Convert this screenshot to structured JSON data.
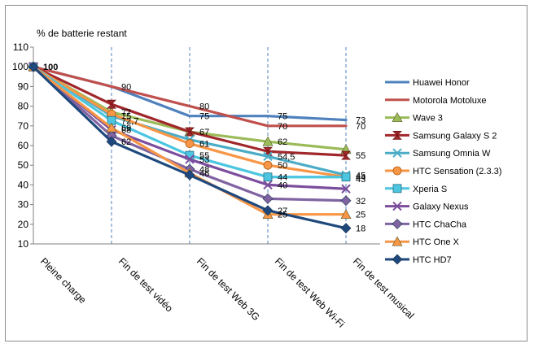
{
  "chart_data": {
    "type": "line",
    "ylabel": "% de batterie restant",
    "categories": [
      "Pleine charge",
      "Fin de test  vidéo",
      "Fin de test  Web 3G",
      "Fin de test  Web Wi-Fi",
      "Fin de test  musical"
    ],
    "ylim": [
      10,
      110
    ],
    "yticks": [
      10,
      20,
      30,
      40,
      50,
      60,
      70,
      80,
      90,
      100,
      110
    ],
    "grid": "vertical dashed at categories",
    "legend_placement": "right",
    "series": [
      {
        "name": "Huawei Honor",
        "color": "#4f81bd",
        "marker": "none",
        "values": [
          100,
          90,
          75,
          75,
          73
        ]
      },
      {
        "name": "Motorola Motoluxe",
        "color": "#c0504d",
        "marker": "none",
        "values": [
          100,
          90,
          80,
          70,
          70
        ]
      },
      {
        "name": "Wave 3",
        "color": "#9bbb59",
        "marker": "triangle",
        "values": [
          100,
          77,
          67,
          62,
          58
        ]
      },
      {
        "name": "Samsung Galaxy S 2",
        "color": "#a0282c",
        "marker": "hourglass",
        "values": [
          100,
          81,
          67,
          57,
          55
        ]
      },
      {
        "name": "Samsung Omnia W",
        "color": "#4bacc6",
        "marker": "x",
        "values": [
          100,
          75,
          63,
          54.5,
          45
        ]
      },
      {
        "name": "HTC Sensation (2.3.3)",
        "color": "#f79646",
        "marker": "circle",
        "values": [
          100,
          76,
          61,
          50,
          44
        ]
      },
      {
        "name": "Xperia S",
        "color": "#4bc5e0",
        "marker": "square",
        "values": [
          100,
          72.7,
          55,
          44,
          44
        ]
      },
      {
        "name": "Galaxy Nexus",
        "color": "#7b4d9d",
        "marker": "x",
        "values": [
          100,
          68,
          53,
          40,
          38
        ]
      },
      {
        "name": "HTC ChaCha",
        "color": "#8064a2",
        "marker": "diamond",
        "values": [
          100,
          65,
          48,
          33,
          32
        ]
      },
      {
        "name": "HTC One X",
        "color": "#f79646",
        "marker": "triangle",
        "values": [
          100,
          69,
          46,
          25,
          25
        ]
      },
      {
        "name": "HTC HD7",
        "color": "#1f497d",
        "marker": "diamond",
        "values": [
          100,
          62,
          45,
          27,
          18
        ]
      }
    ],
    "data_labels": [
      {
        "category": 0,
        "value": 100,
        "text": "100"
      },
      {
        "category": 1,
        "value": 90,
        "text": "90"
      },
      {
        "category": 1,
        "value": 77,
        "text": "77"
      },
      {
        "category": 1,
        "value": 75,
        "text": "75"
      },
      {
        "category": 1,
        "value": 72.7,
        "text": "72,7"
      },
      {
        "category": 1,
        "value": 68,
        "text": "68"
      },
      {
        "category": 1,
        "value": 69,
        "text": "69"
      },
      {
        "category": 1,
        "value": 62,
        "text": "62"
      },
      {
        "category": 2,
        "value": 80,
        "text": "80"
      },
      {
        "category": 2,
        "value": 75,
        "text": "75"
      },
      {
        "category": 2,
        "value": 67,
        "text": "67"
      },
      {
        "category": 2,
        "value": 61,
        "text": "61"
      },
      {
        "category": 2,
        "value": 55,
        "text": "55"
      },
      {
        "category": 2,
        "value": 53,
        "text": "53"
      },
      {
        "category": 2,
        "value": 48,
        "text": "48"
      },
      {
        "category": 2,
        "value": 46,
        "text": "46"
      },
      {
        "category": 3,
        "value": 75,
        "text": "75"
      },
      {
        "category": 3,
        "value": 70,
        "text": "70"
      },
      {
        "category": 3,
        "value": 62,
        "text": "62"
      },
      {
        "category": 3,
        "value": 54.5,
        "text": "54,5"
      },
      {
        "category": 3,
        "value": 50,
        "text": "50"
      },
      {
        "category": 3,
        "value": 44,
        "text": "44"
      },
      {
        "category": 3,
        "value": 40,
        "text": "40"
      },
      {
        "category": 3,
        "value": 25,
        "text": "25"
      },
      {
        "category": 3,
        "value": 27,
        "text": "27"
      },
      {
        "category": 4,
        "value": 73,
        "text": "73"
      },
      {
        "category": 4,
        "value": 70,
        "text": "70"
      },
      {
        "category": 4,
        "value": 55,
        "text": "55"
      },
      {
        "category": 4,
        "value": 45,
        "text": "45"
      },
      {
        "category": 4,
        "value": 44,
        "text": "44"
      },
      {
        "category": 4,
        "value": 43,
        "text": "43"
      },
      {
        "category": 4,
        "value": 32,
        "text": "32"
      },
      {
        "category": 4,
        "value": 25,
        "text": "25"
      },
      {
        "category": 4,
        "value": 18,
        "text": "18"
      }
    ]
  }
}
